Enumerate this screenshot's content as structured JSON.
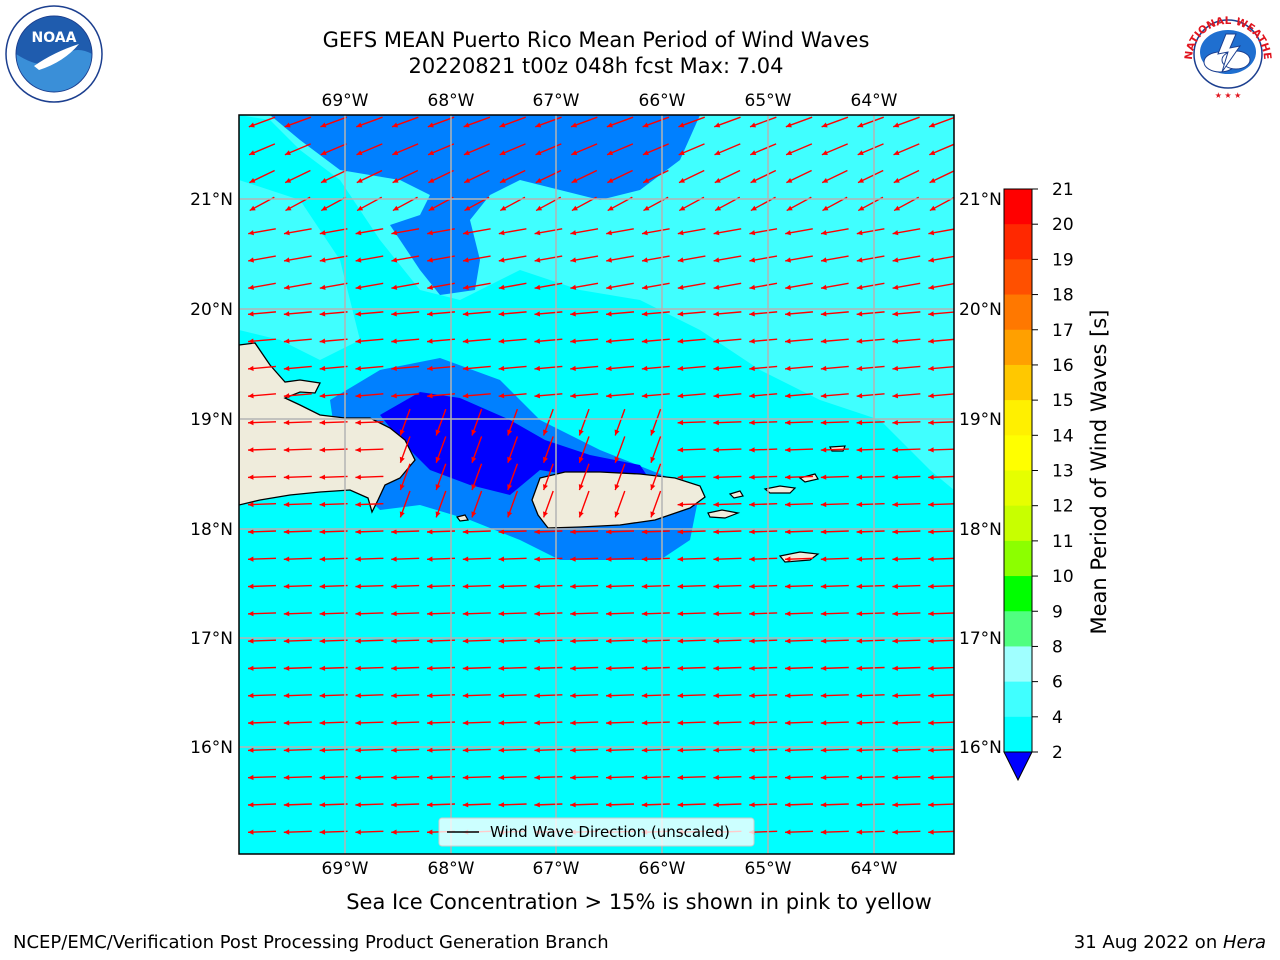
{
  "header": {
    "title_line1": "GEFS MEAN Puerto Rico Mean Period of Wind Waves",
    "title_line2": "20220821 t00z 048h fcst   Max: 7.04"
  },
  "logos": {
    "noaa": {
      "icon": "noaa-logo",
      "text": "NOAA",
      "ring_text": "NATIONAL OCEANIC AND ATMOSPHERIC ADMINISTRATION · U.S. DEPARTMENT OF COMMERCE"
    },
    "nws": {
      "icon": "nws-logo",
      "ring_text": "NATIONAL WEATHER SERVICE"
    }
  },
  "map": {
    "lon_labels": [
      "69°W",
      "68°W",
      "67°W",
      "66°W",
      "65°W",
      "64°W"
    ],
    "lat_labels": [
      "21°N",
      "20°N",
      "19°N",
      "18°N",
      "17°N",
      "16°N"
    ],
    "legend_label": "Wind Wave Direction (unscaled)",
    "colors": {
      "period_2_4": "#0080ff",
      "period_4_6": "#00ffff",
      "period_6_8": "#40ffff",
      "period_lt_2": "#0000ff",
      "land": "#efecdc",
      "arrows": "#ff0000",
      "grid": "#b4b4b4"
    }
  },
  "colorbar": {
    "label": "Mean Period of Wind Waves [s]",
    "ticks": [
      "21",
      "20",
      "19",
      "18",
      "17",
      "16",
      "15",
      "14",
      "13",
      "12",
      "11",
      "10",
      "9",
      "8",
      "6",
      "4",
      "2"
    ],
    "colors": [
      "#ff0000",
      "#ff2800",
      "#ff5000",
      "#ff7800",
      "#ffa000",
      "#ffc800",
      "#fff000",
      "#ffff00",
      "#e6ff00",
      "#c8ff00",
      "#8cff00",
      "#00ff00",
      "#50ff80",
      "#a0ffff",
      "#40ffff",
      "#00ffff",
      "#0080ff",
      "#0000ff"
    ]
  },
  "bottom_note": "Sea Ice Concentration > 15% is shown in pink to yellow",
  "footer": {
    "left": "NCEP/EMC/Verification Post Processing Product Generation Branch",
    "right_date": "31 Aug 2022 on ",
    "right_host": "Hera"
  }
}
